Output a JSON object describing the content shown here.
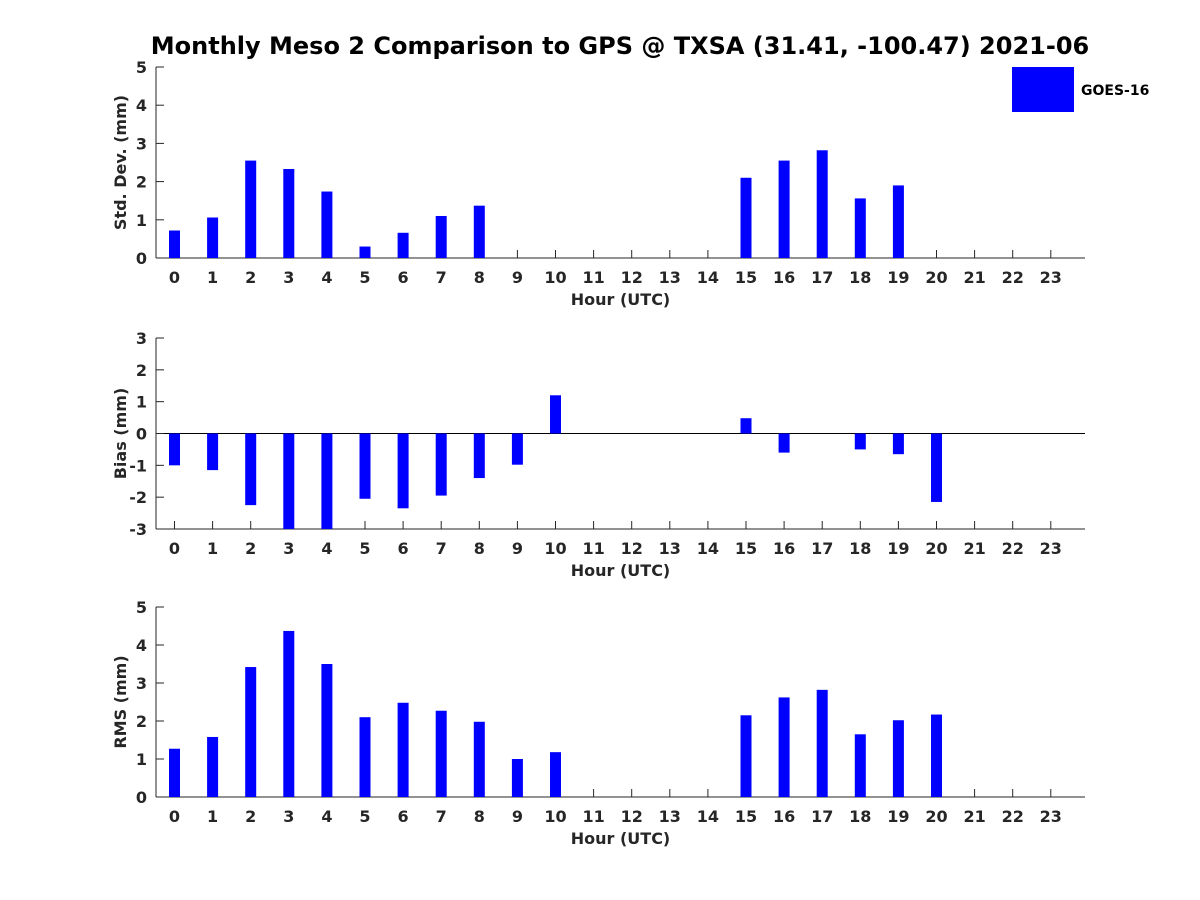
{
  "title": "Monthly Meso 2 Comparison to GPS @ TXSA (31.41, -100.47) 2021-06",
  "legend": {
    "entries": [
      {
        "label": "GOES-16",
        "color": "#0000ff"
      }
    ],
    "placement": "top-right"
  },
  "colors": {
    "bar": "#0000ff",
    "axis": "#262626",
    "zero_line": "#000000"
  },
  "chart_data": [
    {
      "type": "bar",
      "series": [
        {
          "name": "GOES-16",
          "values": [
            0.72,
            1.06,
            2.55,
            2.33,
            1.74,
            0.3,
            0.66,
            1.1,
            1.37,
            null,
            null,
            null,
            null,
            null,
            null,
            2.1,
            2.55,
            2.82,
            1.56,
            1.9,
            null,
            null,
            null,
            null
          ]
        }
      ],
      "categories": [
        "0",
        "1",
        "2",
        "3",
        "4",
        "5",
        "6",
        "7",
        "8",
        "9",
        "10",
        "11",
        "12",
        "13",
        "14",
        "15",
        "16",
        "17",
        "18",
        "19",
        "20",
        "21",
        "22",
        "23"
      ],
      "xlabel": "Hour (UTC)",
      "ylabel": "Std. Dev. (mm)",
      "ylim": [
        0,
        5
      ],
      "yticks": [
        "0",
        "1",
        "2",
        "3",
        "4",
        "5"
      ],
      "grid": false
    },
    {
      "type": "bar",
      "series": [
        {
          "name": "GOES-16",
          "values": [
            -1.0,
            -1.15,
            -2.25,
            -3.0,
            -3.0,
            -2.05,
            -2.35,
            -1.95,
            -1.4,
            -0.98,
            1.2,
            null,
            null,
            null,
            null,
            0.48,
            -0.6,
            0.0,
            -0.5,
            -0.65,
            -2.15,
            null,
            null,
            0.0
          ]
        }
      ],
      "categories": [
        "0",
        "1",
        "2",
        "3",
        "4",
        "5",
        "6",
        "7",
        "8",
        "9",
        "10",
        "11",
        "12",
        "13",
        "14",
        "15",
        "16",
        "17",
        "18",
        "19",
        "20",
        "21",
        "22",
        "23"
      ],
      "xlabel": "Hour (UTC)",
      "ylabel": "Bias (mm)",
      "ylim": [
        -3,
        3
      ],
      "yticks": [
        "-3",
        "-2",
        "-1",
        "0",
        "1",
        "2",
        "3"
      ],
      "grid": false
    },
    {
      "type": "bar",
      "series": [
        {
          "name": "GOES-16",
          "values": [
            1.27,
            1.58,
            3.42,
            4.37,
            3.5,
            2.1,
            2.48,
            2.27,
            1.98,
            1.0,
            1.18,
            null,
            null,
            null,
            null,
            2.15,
            2.62,
            2.82,
            1.65,
            2.02,
            2.17,
            null,
            null,
            null
          ]
        }
      ],
      "categories": [
        "0",
        "1",
        "2",
        "3",
        "4",
        "5",
        "6",
        "7",
        "8",
        "9",
        "10",
        "11",
        "12",
        "13",
        "14",
        "15",
        "16",
        "17",
        "18",
        "19",
        "20",
        "21",
        "22",
        "23"
      ],
      "xlabel": "Hour (UTC)",
      "ylabel": "RMS (mm)",
      "ylim": [
        0,
        5
      ],
      "yticks": [
        "0",
        "1",
        "2",
        "3",
        "4",
        "5"
      ],
      "grid": false
    }
  ]
}
